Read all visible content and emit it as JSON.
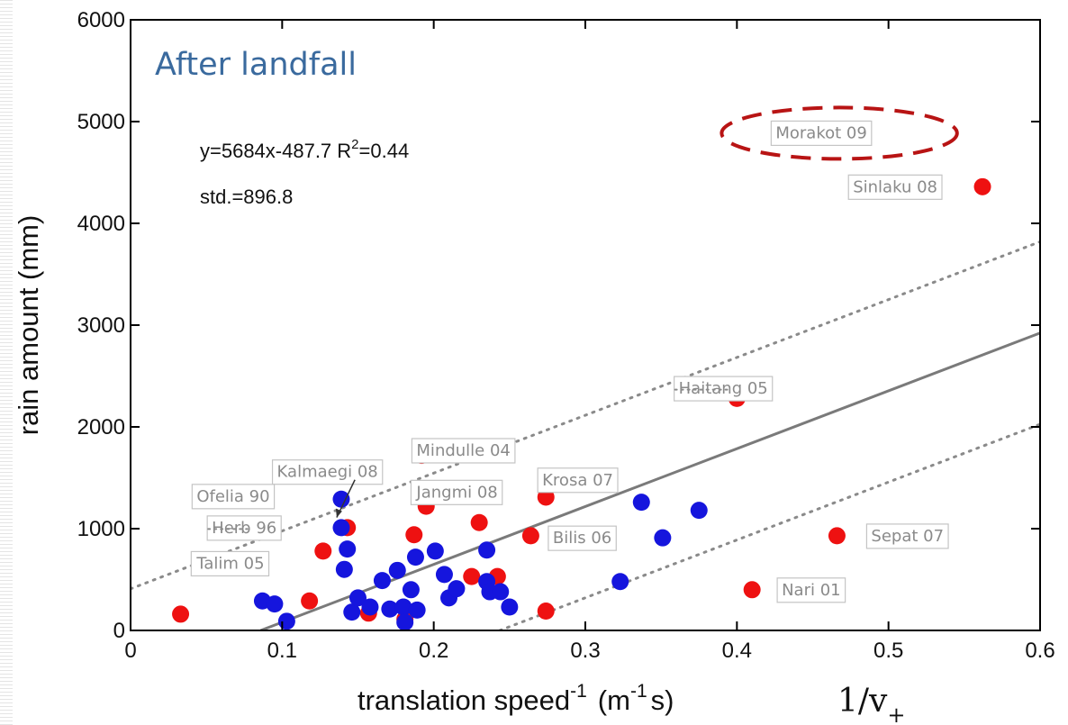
{
  "chart_data": {
    "type": "scatter",
    "title": "After landfall",
    "xlabel": "translation speed",
    "xlabel_sup": "-1",
    "xlabel_units_pre": "(m",
    "xlabel_units_sup": "-1",
    "xlabel_units_post": "s)",
    "ylabel": "rain amount (mm)",
    "xlim": [
      0,
      0.6
    ],
    "ylim": [
      0,
      6000
    ],
    "x_ticks": [
      "0",
      "0.1",
      "0.2",
      "0.3",
      "0.4",
      "0.5",
      "0.6"
    ],
    "y_ticks": [
      "0",
      "1000",
      "2000",
      "3000",
      "4000",
      "5000",
      "6000"
    ],
    "grid": false,
    "equation": "y=5684x-487.7 R",
    "equation_sup": "2",
    "equation_tail": "=0.44",
    "std_text": "std.=896.8",
    "formula_label": "1/v",
    "formula_sub": "+",
    "fit_line": {
      "slope": 5684,
      "intercept": -487.7
    },
    "band_offset": 896.8,
    "colors": {
      "red": "#ee1111",
      "blue": "#1515dd",
      "fit": "#7a7a7a",
      "band": "#8a8a8a",
      "highlight": "#b81414"
    },
    "series": [
      {
        "color": "red",
        "points": [
          {
            "x": 0.033,
            "y": 160
          },
          {
            "x": 0.118,
            "y": 290
          },
          {
            "x": 0.127,
            "y": 780
          },
          {
            "x": 0.143,
            "y": 1010
          },
          {
            "x": 0.157,
            "y": 170
          },
          {
            "x": 0.181,
            "y": 110
          },
          {
            "x": 0.187,
            "y": 940
          },
          {
            "x": 0.192,
            "y": 1720
          },
          {
            "x": 0.195,
            "y": 1220
          },
          {
            "x": 0.225,
            "y": 530
          },
          {
            "x": 0.23,
            "y": 1060
          },
          {
            "x": 0.242,
            "y": 530
          },
          {
            "x": 0.264,
            "y": 930
          },
          {
            "x": 0.274,
            "y": 190
          },
          {
            "x": 0.274,
            "y": 1310
          },
          {
            "x": 0.4,
            "y": 2280
          },
          {
            "x": 0.41,
            "y": 400
          },
          {
            "x": 0.466,
            "y": 930
          },
          {
            "x": 0.48,
            "y": 4890
          },
          {
            "x": 0.562,
            "y": 4360
          }
        ]
      },
      {
        "color": "blue",
        "points": [
          {
            "x": 0.087,
            "y": 290
          },
          {
            "x": 0.095,
            "y": 260
          },
          {
            "x": 0.103,
            "y": 90
          },
          {
            "x": 0.139,
            "y": 1290
          },
          {
            "x": 0.139,
            "y": 1010
          },
          {
            "x": 0.141,
            "y": 600
          },
          {
            "x": 0.143,
            "y": 800
          },
          {
            "x": 0.146,
            "y": 180
          },
          {
            "x": 0.15,
            "y": 320
          },
          {
            "x": 0.158,
            "y": 230
          },
          {
            "x": 0.166,
            "y": 490
          },
          {
            "x": 0.171,
            "y": 210
          },
          {
            "x": 0.176,
            "y": 590
          },
          {
            "x": 0.18,
            "y": 230
          },
          {
            "x": 0.185,
            "y": 400
          },
          {
            "x": 0.188,
            "y": 720
          },
          {
            "x": 0.189,
            "y": 200
          },
          {
            "x": 0.201,
            "y": 780
          },
          {
            "x": 0.207,
            "y": 550
          },
          {
            "x": 0.21,
            "y": 320
          },
          {
            "x": 0.215,
            "y": 410
          },
          {
            "x": 0.235,
            "y": 790
          },
          {
            "x": 0.235,
            "y": 480
          },
          {
            "x": 0.237,
            "y": 380
          },
          {
            "x": 0.244,
            "y": 380
          },
          {
            "x": 0.25,
            "y": 230
          },
          {
            "x": 0.323,
            "y": 480
          },
          {
            "x": 0.337,
            "y": 1260
          },
          {
            "x": 0.351,
            "y": 910
          },
          {
            "x": 0.375,
            "y": 1180
          },
          {
            "x": 0.181,
            "y": 80
          }
        ]
      }
    ],
    "annotations": [
      {
        "text": "Morakot 09",
        "x": 0.422,
        "y": 4890,
        "highlight": true
      },
      {
        "text": "Sinlaku 08",
        "x": 0.473,
        "y": 4360
      },
      {
        "text": "Haitang 05",
        "x": 0.358,
        "y": 2380,
        "strike": true
      },
      {
        "text": "Mindulle 04",
        "x": 0.185,
        "y": 1770
      },
      {
        "text": "Kalmaegi 08",
        "x": 0.093,
        "y": 1560
      },
      {
        "text": "Jangmi 08",
        "x": 0.185,
        "y": 1360
      },
      {
        "text": "Krosa 07",
        "x": 0.268,
        "y": 1480
      },
      {
        "text": "Ofelia 90",
        "x": 0.04,
        "y": 1320
      },
      {
        "text": "Herb 96",
        "x": 0.05,
        "y": 1010,
        "strike": true
      },
      {
        "text": "Bilis 06",
        "x": 0.275,
        "y": 910
      },
      {
        "text": "Sepat 07",
        "x": 0.485,
        "y": 930
      },
      {
        "text": "Talim 05",
        "x": 0.04,
        "y": 660
      },
      {
        "text": "Nari 01",
        "x": 0.426,
        "y": 400
      }
    ]
  }
}
